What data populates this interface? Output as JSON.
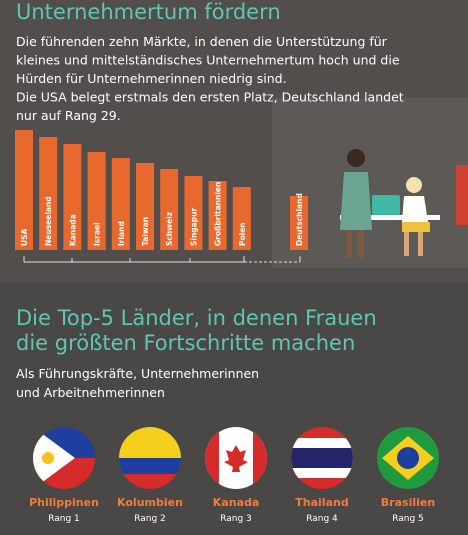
{
  "intro": {
    "title": "Unternehmertum fördern",
    "lines": [
      "Die führenden zehn Märkte, in denen die Unterstützung für",
      "kleines und mittelständisches Unternehmertum hoch und die",
      "Hürden für Unternehmerinnen niedrig sind.",
      "Die USA belegt erstmals den ersten Platz, Deutschland landet",
      "nur auf Rang 29."
    ]
  },
  "chart_data": {
    "type": "bar",
    "categories": [
      "USA",
      "Neuseeland",
      "Kanada",
      "Israel",
      "Irland",
      "Taiwan",
      "Schweiz",
      "Singapur",
      "Großbritannien",
      "Polen",
      "Deutschland"
    ],
    "values": [
      120,
      113,
      106,
      98,
      92,
      87,
      81,
      74,
      69,
      63,
      54
    ],
    "color": "#e8692d"
  },
  "progress": {
    "title": [
      "Die Top-5 Länder, in denen Frauen",
      "die größten Fortschritte machen"
    ],
    "subtitle": [
      "Als Führungskräfte, Unternehmerinnen",
      "und Arbeitnehmerinnen"
    ],
    "countries": [
      {
        "name": "Philippinen",
        "rank": "Rang 1"
      },
      {
        "name": "Kolumbien",
        "rank": "Rang 2"
      },
      {
        "name": "Kanada",
        "rank": "Rang 3"
      },
      {
        "name": "Thailand",
        "rank": "Rang 4"
      },
      {
        "name": "Brasilien",
        "rank": "Rang 5"
      }
    ]
  }
}
